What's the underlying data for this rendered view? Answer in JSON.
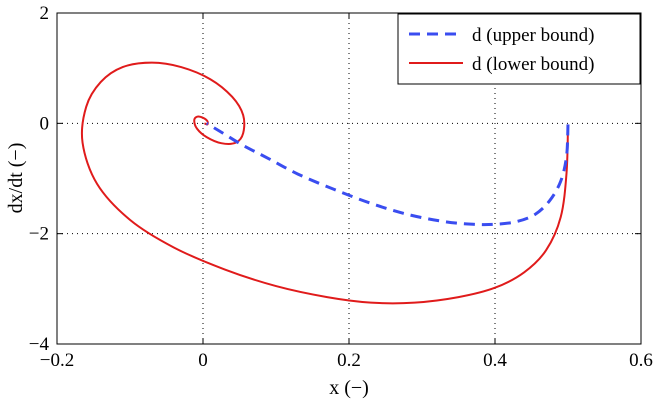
{
  "chart_data": {
    "type": "line",
    "title": "",
    "xlabel": "x (−)",
    "ylabel": "dx/dt (−)",
    "xlim": [
      -0.2,
      0.6
    ],
    "ylim": [
      -4,
      2
    ],
    "x_ticks": [
      -0.2,
      0,
      0.2,
      0.4,
      0.6
    ],
    "x_tick_labels": [
      "−0.2",
      "0",
      "0.2",
      "0.4",
      "0.6"
    ],
    "y_ticks": [
      -4,
      -2,
      0,
      2
    ],
    "y_tick_labels": [
      "−4",
      "−2",
      "0",
      "2"
    ],
    "grid": true,
    "grid_style": "dotted",
    "legend_position": "top-right",
    "series": [
      {
        "name": "d (upper bound)",
        "color": "#3a4df0",
        "line_style": "dashed",
        "x": [
          0.5,
          0.498,
          0.49,
          0.475,
          0.455,
          0.43,
          0.4,
          0.37,
          0.33,
          0.28,
          0.23,
          0.18,
          0.13,
          0.09,
          0.055,
          0.03,
          0.015,
          0.005
        ],
        "y": [
          -0.02,
          -0.6,
          -1.05,
          -1.4,
          -1.65,
          -1.78,
          -1.83,
          -1.83,
          -1.78,
          -1.65,
          -1.45,
          -1.2,
          -0.92,
          -0.64,
          -0.4,
          -0.2,
          -0.08,
          0.0
        ]
      },
      {
        "name": "d (lower bound)",
        "color": "#e01b1b",
        "line_style": "solid",
        "x": [
          0.5,
          0.498,
          0.49,
          0.47,
          0.44,
          0.4,
          0.35,
          0.29,
          0.23,
          0.17,
          0.1,
          0.03,
          -0.04,
          -0.1,
          -0.145,
          -0.165,
          -0.16,
          -0.14,
          -0.11,
          -0.07,
          -0.03,
          0.01,
          0.04,
          0.055,
          0.055,
          0.045,
          0.025,
          0.005,
          -0.008,
          -0.012,
          -0.008,
          0.0,
          0.006,
          0.006,
          0.002
        ],
        "y": [
          -0.02,
          -0.9,
          -1.7,
          -2.3,
          -2.7,
          -2.98,
          -3.15,
          -3.25,
          -3.25,
          -3.15,
          -2.95,
          -2.65,
          -2.25,
          -1.75,
          -1.1,
          -0.35,
          0.3,
          0.75,
          1.02,
          1.1,
          1.02,
          0.8,
          0.48,
          0.15,
          -0.18,
          -0.35,
          -0.36,
          -0.25,
          -0.1,
          0.05,
          0.12,
          0.1,
          0.04,
          -0.02,
          0.0
        ]
      }
    ]
  }
}
